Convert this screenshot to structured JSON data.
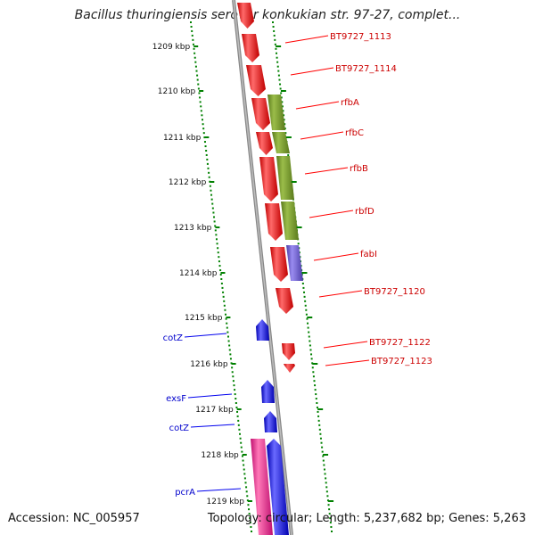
{
  "title": "Bacillus thuringiensis serovar konkukian str. 97-27, complet...",
  "footer": {
    "accession": "Accession: NC_005957",
    "topology": "Topology: circular; Length: 5,237,682 bp; Genes: 5,263"
  },
  "colors": {
    "forward_gene": "#ff0000",
    "reverse_gene": "#0000ee",
    "rfb_gene": "#6b8e23",
    "fabI_gene": "#6a5acd",
    "pcrA_companion": "#ff1493",
    "backbone": "#888888",
    "tick": "#008000"
  },
  "ticks": [
    {
      "kbp": 1209,
      "label": "1209 kbp"
    },
    {
      "kbp": 1210,
      "label": "1210 kbp"
    },
    {
      "kbp": 1211,
      "label": "1211 kbp"
    },
    {
      "kbp": 1212,
      "label": "1212 kbp"
    },
    {
      "kbp": 1213,
      "label": "1213 kbp"
    },
    {
      "kbp": 1214,
      "label": "1214 kbp"
    },
    {
      "kbp": 1215,
      "label": "1215 kbp"
    },
    {
      "kbp": 1216,
      "label": "1216 kbp"
    },
    {
      "kbp": 1217,
      "label": "1217 kbp"
    },
    {
      "kbp": 1218,
      "label": "1218 kbp"
    },
    {
      "kbp": 1219,
      "label": "1219 kbp"
    }
  ],
  "forward_labels": [
    {
      "name": "BT9727_1113"
    },
    {
      "name": "BT9727_1114"
    },
    {
      "name": "rfbA"
    },
    {
      "name": "rfbC"
    },
    {
      "name": "rfbB"
    },
    {
      "name": "rbfD"
    },
    {
      "name": "fabI"
    },
    {
      "name": "BT9727_1120"
    },
    {
      "name": "BT9727_1122"
    },
    {
      "name": "BT9727_1123"
    }
  ],
  "reverse_labels": [
    {
      "name": "cotZ"
    },
    {
      "name": "exsF"
    },
    {
      "name": "cotZ"
    },
    {
      "name": "pcrA"
    }
  ]
}
